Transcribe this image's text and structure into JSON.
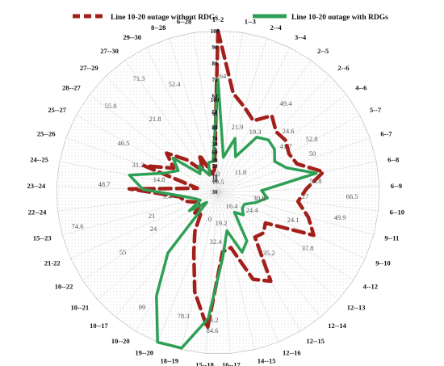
{
  "chart_data": {
    "type": "radar",
    "title": "",
    "legend_position": "top",
    "axis_range": [
      0,
      100
    ],
    "ticks": [
      0,
      10,
      20,
      30,
      40,
      50,
      60,
      70,
      80,
      90,
      100
    ],
    "tick_labels": [
      "0",
      "10",
      "20",
      "30",
      "40",
      "50",
      "60",
      "70",
      "80",
      "90",
      "100"
    ],
    "categories": [
      "1--2",
      "1--3",
      "2--4",
      "3--4",
      "2--5",
      "2--6",
      "4--6",
      "5--7",
      "6--7",
      "6--8",
      "6--9",
      "6--10",
      "9--11",
      "9--10",
      "4--12",
      "12--13",
      "12--14",
      "12--15",
      "12--16",
      "14--15",
      "16--17",
      "15--18",
      "18--19",
      "19--20",
      "10--20",
      "10--17",
      "10--21",
      "10--22",
      "21-22",
      "15--23",
      "22--24",
      "23--24",
      "24--25",
      "25--26",
      "25--27",
      "28--27",
      "27--29",
      "27--30",
      "29--30",
      "8--28",
      "6--28"
    ],
    "series": [
      {
        "name": "Line 10-20 outage  without RDGs",
        "color": "#a31f1a",
        "style": "dashed",
        "values": [
          100,
          62,
          55,
          49.4,
          58,
          52,
          52.8,
          50,
          52,
          66.5,
          54.8,
          49.9,
          58,
          65,
          35,
          37.8,
          36,
          64,
          58,
          35.2,
          37,
          84.6,
          63.2,
          40,
          28,
          16.4,
          19.2,
          12.4,
          15,
          21,
          24,
          55,
          13,
          48.7,
          31.2,
          40,
          28,
          16,
          26,
          12,
          14
        ]
      },
      {
        "name": "Line 10-20 outage  with RDGs",
        "color": "#2ea055",
        "style": "solid",
        "values": [
          70,
          21.9,
          35,
          24.6,
          41.7,
          45,
          44,
          40,
          45,
          62,
          27,
          30.8,
          24.1,
          18,
          18,
          21,
          16,
          35,
          40,
          24.4,
          40,
          78.3,
          99,
          100,
          74.6,
          48.7,
          9.4,
          21,
          12,
          14.8,
          21.8,
          46.5,
          55.8,
          35,
          28,
          35,
          16,
          20,
          11.8,
          19.3,
          19.5
        ]
      }
    ],
    "data_labels": [
      "100",
      "90",
      "80",
      "70",
      "60",
      "50",
      "40",
      "30",
      "64",
      "21.9",
      "19.3",
      "49.4",
      "24.6",
      "41.7",
      "52.8",
      "50",
      "54.8",
      "66.5",
      "27",
      "30.8",
      "49.9",
      "24.1",
      "37.8",
      "35.2",
      "16.4",
      "24.4",
      "19.2",
      "32.4",
      "63.2",
      "84.6",
      "78.3",
      "99",
      "55",
      "24",
      "21",
      "74.6",
      "9.4",
      "48.7",
      "14.8",
      "31.2",
      "21.8",
      "46.5",
      "55.8",
      "71.3",
      "52.4",
      "11.8",
      "19.5",
      "10",
      "0"
    ]
  }
}
